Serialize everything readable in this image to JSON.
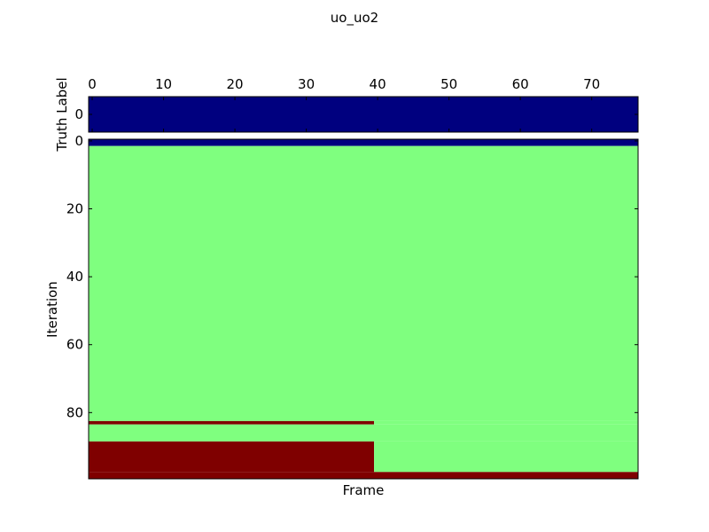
{
  "chart_data": {
    "type": "heatmap",
    "title": "uo_uo2",
    "colors": {
      "label_0": "#00007f",
      "label_1": "#7fff7f",
      "label_2": "#7f0000"
    },
    "panels": [
      {
        "name": "truth",
        "ylabel": "Truth Label",
        "x_ticks": [
          0,
          10,
          20,
          30,
          40,
          50,
          60,
          70
        ],
        "x_tick_position": "top",
        "y_ticks": [
          0
        ],
        "xlim": [
          -0.5,
          76.5
        ],
        "ylim": [
          -0.5,
          0.5
        ],
        "rows": [
          {
            "row": 0,
            "segments": [
              {
                "x_start": 0,
                "x_end": 76,
                "value": 0
              }
            ]
          }
        ]
      },
      {
        "name": "iterations",
        "xlabel": "Frame",
        "ylabel": "Iteration",
        "y_ticks": [
          0,
          20,
          40,
          60,
          80
        ],
        "xlim": [
          -0.5,
          76.5
        ],
        "ylim": [
          -0.5,
          99.5
        ],
        "y_inverted": true,
        "row_ranges": [
          {
            "y_start": 0,
            "y_end": 1,
            "segments": [
              {
                "x_start": 0,
                "x_end": 76,
                "value": 0
              }
            ]
          },
          {
            "y_start": 2,
            "y_end": 82,
            "segments": [
              {
                "x_start": 0,
                "x_end": 76,
                "value": 1
              }
            ]
          },
          {
            "y_start": 83,
            "y_end": 83,
            "segments": [
              {
                "x_start": 0,
                "x_end": 39,
                "value": 2
              },
              {
                "x_start": 40,
                "x_end": 76,
                "value": 1
              }
            ]
          },
          {
            "y_start": 84,
            "y_end": 88,
            "segments": [
              {
                "x_start": 0,
                "x_end": 76,
                "value": 1
              }
            ]
          },
          {
            "y_start": 89,
            "y_end": 97,
            "segments": [
              {
                "x_start": 0,
                "x_end": 39,
                "value": 2
              },
              {
                "x_start": 40,
                "x_end": 76,
                "value": 1
              }
            ]
          },
          {
            "y_start": 98,
            "y_end": 99,
            "segments": [
              {
                "x_start": 0,
                "x_end": 76,
                "value": 2
              }
            ]
          }
        ]
      }
    ]
  }
}
